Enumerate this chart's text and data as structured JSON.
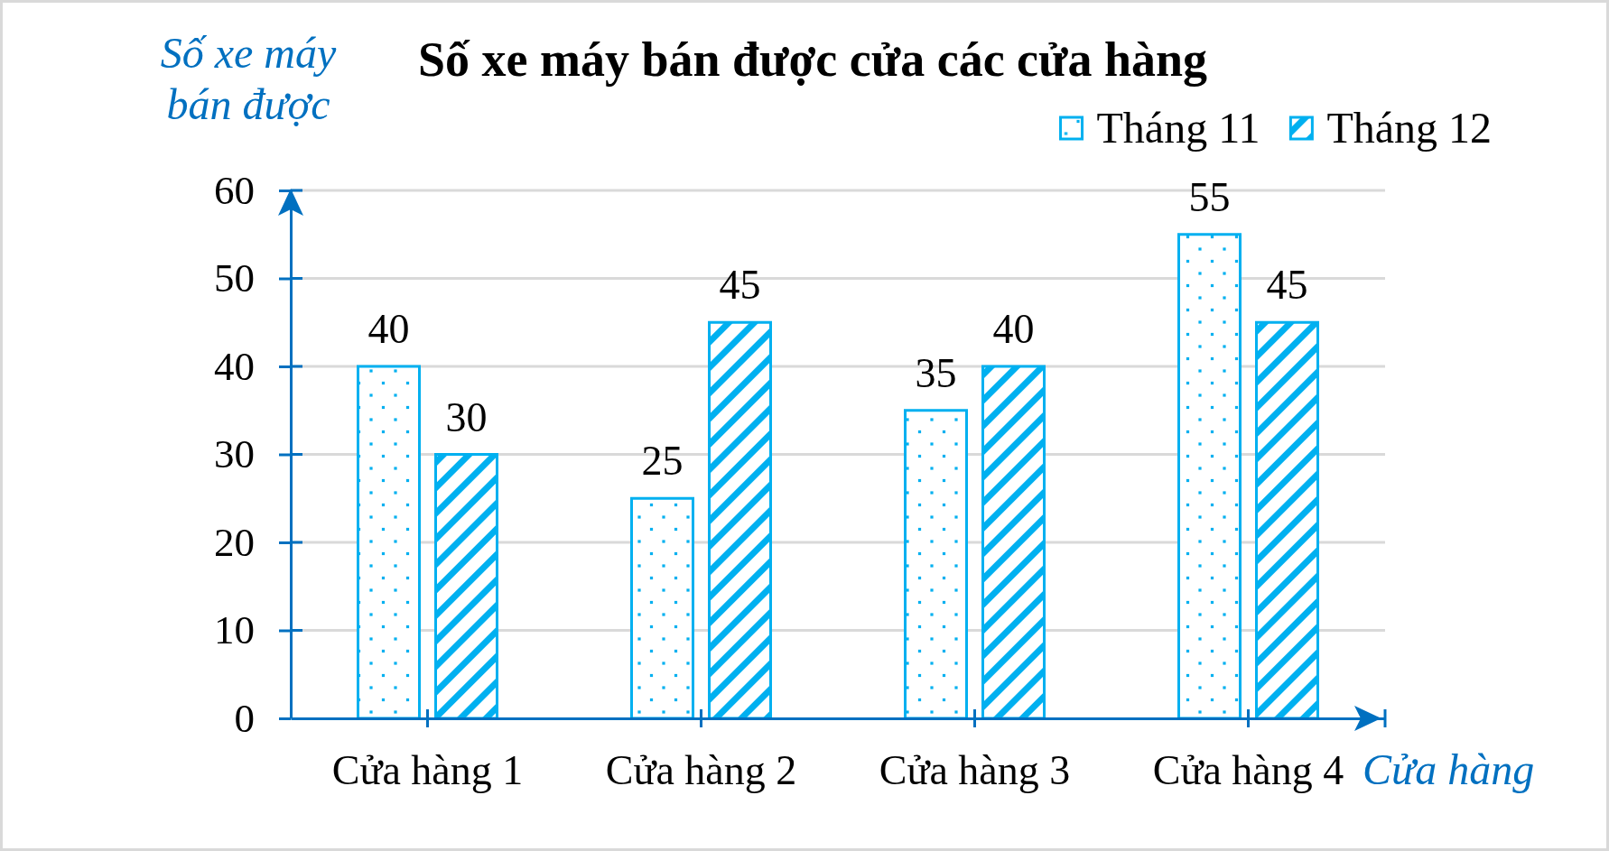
{
  "chart_data": {
    "type": "bar",
    "title": "Số xe máy bán được cửa các cửa hàng",
    "xlabel": "Cửa hàng",
    "ylabel": "Số xe máy bán được",
    "categories": [
      "Cửa hàng 1",
      "Cửa hàng 2",
      "Cửa hàng 3",
      "Cửa hàng 4"
    ],
    "series": [
      {
        "name": "Tháng 11",
        "color": "#00b0f0",
        "values": [
          40,
          25,
          35,
          55
        ]
      },
      {
        "name": "Tháng 12",
        "color": "#00b0f0",
        "values": [
          30,
          45,
          40,
          45
        ]
      }
    ],
    "ylim": [
      0,
      60
    ],
    "yticks": [
      0,
      10,
      20,
      30,
      40,
      50,
      60
    ],
    "grid": "y",
    "legend": "top right",
    "data_labels": true
  }
}
